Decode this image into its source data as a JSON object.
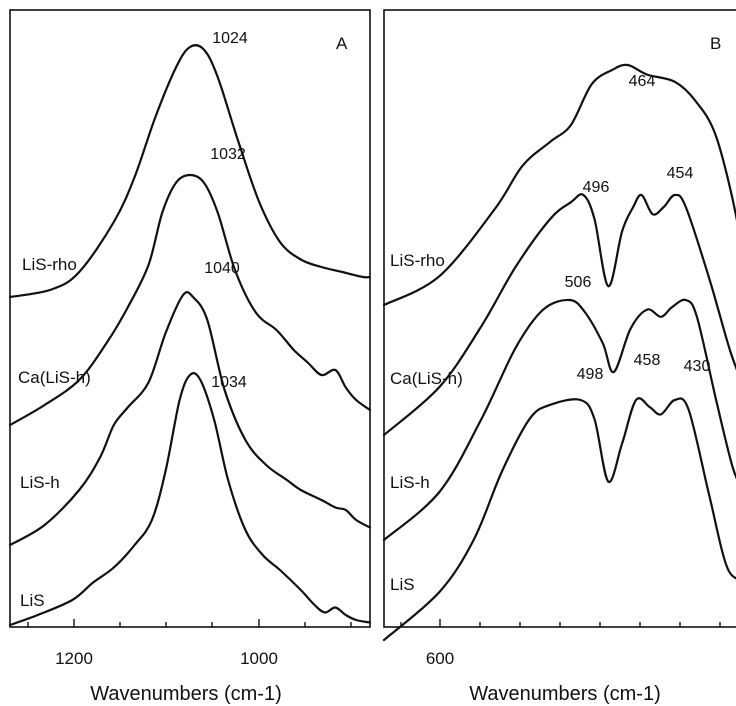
{
  "chart_data": [
    {
      "type": "line",
      "panel_label": "A",
      "xlabel": "Wavenumbers (cm-1)",
      "ylabel": "",
      "xlim": [
        1300,
        780
      ],
      "x_reversed": true,
      "tick_labels": [
        "1200",
        "1000"
      ],
      "tick_values": [
        1200,
        1000
      ],
      "grid": false,
      "legend": "none",
      "series": [
        {
          "name": "LiS-rho",
          "peak_label": "1024",
          "points": [
            [
              1300,
              0.0
            ],
            [
              1240,
              0.03
            ],
            [
              1200,
              0.1
            ],
            [
              1150,
              0.3
            ],
            [
              1120,
              0.48
            ],
            [
              1090,
              0.72
            ],
            [
              1060,
              0.92
            ],
            [
              1040,
              1.0
            ],
            [
              1020,
              0.99
            ],
            [
              1000,
              0.88
            ],
            [
              970,
              0.62
            ],
            [
              940,
              0.38
            ],
            [
              910,
              0.22
            ],
            [
              880,
              0.15
            ],
            [
              850,
              0.12
            ],
            [
              820,
              0.1
            ],
            [
              790,
              0.08
            ],
            [
              780,
              0.08
            ]
          ]
        },
        {
          "name": "Ca(LiS-h)",
          "peak_label": "1032",
          "points": [
            [
              1300,
              0.0
            ],
            [
              1250,
              0.08
            ],
            [
              1200,
              0.18
            ],
            [
              1160,
              0.33
            ],
            [
              1130,
              0.47
            ],
            [
              1100,
              0.64
            ],
            [
              1080,
              0.85
            ],
            [
              1060,
              0.97
            ],
            [
              1040,
              1.0
            ],
            [
              1020,
              0.97
            ],
            [
              1000,
              0.85
            ],
            [
              975,
              0.62
            ],
            [
              945,
              0.45
            ],
            [
              915,
              0.38
            ],
            [
              890,
              0.3
            ],
            [
              870,
              0.25
            ],
            [
              850,
              0.2
            ],
            [
              830,
              0.22
            ],
            [
              815,
              0.15
            ],
            [
              800,
              0.1
            ],
            [
              780,
              0.06
            ]
          ]
        },
        {
          "name": "LiS-h",
          "peak_label": "1040",
          "points": [
            [
              1300,
              0.0
            ],
            [
              1250,
              0.08
            ],
            [
              1200,
              0.22
            ],
            [
              1170,
              0.35
            ],
            [
              1150,
              0.48
            ],
            [
              1130,
              0.55
            ],
            [
              1100,
              0.65
            ],
            [
              1075,
              0.85
            ],
            [
              1050,
              1.0
            ],
            [
              1035,
              0.99
            ],
            [
              1015,
              0.9
            ],
            [
              990,
              0.62
            ],
            [
              960,
              0.42
            ],
            [
              930,
              0.32
            ],
            [
              900,
              0.26
            ],
            [
              880,
              0.22
            ],
            [
              850,
              0.18
            ],
            [
              830,
              0.15
            ],
            [
              815,
              0.14
            ],
            [
              800,
              0.1
            ],
            [
              780,
              0.07
            ]
          ]
        },
        {
          "name": "LiS",
          "peak_label": "1034",
          "points": [
            [
              1300,
              0.0
            ],
            [
              1260,
              0.04
            ],
            [
              1210,
              0.1
            ],
            [
              1180,
              0.17
            ],
            [
              1150,
              0.23
            ],
            [
              1120,
              0.32
            ],
            [
              1095,
              0.42
            ],
            [
              1075,
              0.62
            ],
            [
              1055,
              0.9
            ],
            [
              1040,
              1.0
            ],
            [
              1025,
              0.98
            ],
            [
              1005,
              0.82
            ],
            [
              985,
              0.58
            ],
            [
              960,
              0.38
            ],
            [
              935,
              0.28
            ],
            [
              910,
              0.22
            ],
            [
              880,
              0.14
            ],
            [
              860,
              0.08
            ],
            [
              845,
              0.05
            ],
            [
              830,
              0.07
            ],
            [
              815,
              0.04
            ],
            [
              800,
              0.02
            ],
            [
              780,
              0.01
            ]
          ]
        }
      ]
    },
    {
      "type": "line",
      "panel_label": "B",
      "xlabel": "Wavenumbers (cm-1)",
      "ylabel": "",
      "xlim": [
        640,
        380
      ],
      "x_reversed": true,
      "tick_labels": [
        "600"
      ],
      "tick_values": [
        600
      ],
      "grid": false,
      "legend": "none",
      "series": [
        {
          "name": "LiS-rho",
          "peak_label": "464",
          "points": [
            [
              640,
              0.0
            ],
            [
              600,
              0.12
            ],
            [
              560,
              0.4
            ],
            [
              540,
              0.58
            ],
            [
              520,
              0.68
            ],
            [
              505,
              0.75
            ],
            [
              490,
              0.92
            ],
            [
              475,
              0.98
            ],
            [
              464,
              1.0
            ],
            [
              450,
              0.96
            ],
            [
              430,
              0.93
            ],
            [
              415,
              0.85
            ],
            [
              400,
              0.7
            ],
            [
              385,
              0.35
            ],
            [
              380,
              0.1
            ]
          ]
        },
        {
          "name": "Ca(LiS-h)",
          "peak_label": "496 / 454",
          "points": [
            [
              640,
              0.0
            ],
            [
              600,
              0.2
            ],
            [
              570,
              0.45
            ],
            [
              545,
              0.7
            ],
            [
              520,
              0.9
            ],
            [
              505,
              0.97
            ],
            [
              496,
              1.0
            ],
            [
              488,
              0.9
            ],
            [
              478,
              0.62
            ],
            [
              468,
              0.85
            ],
            [
              460,
              0.95
            ],
            [
              454,
              1.0
            ],
            [
              446,
              0.92
            ],
            [
              438,
              0.95
            ],
            [
              430,
              1.0
            ],
            [
              422,
              0.95
            ],
            [
              405,
              0.65
            ],
            [
              390,
              0.35
            ],
            [
              380,
              0.2
            ]
          ]
        },
        {
          "name": "LiS-h",
          "peak_label": "506",
          "points": [
            [
              640,
              0.0
            ],
            [
              600,
              0.2
            ],
            [
              570,
              0.5
            ],
            [
              545,
              0.8
            ],
            [
              525,
              0.96
            ],
            [
              506,
              1.0
            ],
            [
              495,
              0.95
            ],
            [
              482,
              0.82
            ],
            [
              474,
              0.7
            ],
            [
              462,
              0.88
            ],
            [
              450,
              0.96
            ],
            [
              440,
              0.93
            ],
            [
              432,
              0.97
            ],
            [
              422,
              1.0
            ],
            [
              414,
              0.93
            ],
            [
              400,
              0.58
            ],
            [
              388,
              0.3
            ],
            [
              380,
              0.2
            ]
          ]
        },
        {
          "name": "LiS",
          "peak_label": "498 / 458 / 430",
          "points": [
            [
              640,
              0.0
            ],
            [
              600,
              0.2
            ],
            [
              575,
              0.42
            ],
            [
              555,
              0.7
            ],
            [
              535,
              0.92
            ],
            [
              520,
              0.98
            ],
            [
              498,
              1.0
            ],
            [
              488,
              0.92
            ],
            [
              478,
              0.66
            ],
            [
              468,
              0.82
            ],
            [
              458,
              1.0
            ],
            [
              448,
              0.97
            ],
            [
              440,
              0.94
            ],
            [
              430,
              1.0
            ],
            [
              420,
              0.96
            ],
            [
              405,
              0.6
            ],
            [
              392,
              0.3
            ],
            [
              380,
              0.25
            ]
          ]
        }
      ]
    }
  ],
  "labels": {
    "panelA": {
      "title": "A",
      "xlabel": "Wavenumbers (cm-1)",
      "ticks": [
        "1200",
        "1000"
      ],
      "series": [
        "LiS-rho",
        "Ca(LiS-h)",
        "LiS-h",
        "LiS"
      ],
      "peaks": [
        "1024",
        "1032",
        "1040",
        "1034"
      ]
    },
    "panelB": {
      "title": "B",
      "xlabel": "Wavenumbers (cm-1)",
      "ticks": [
        "600"
      ],
      "series": [
        "LiS-rho",
        "Ca(LiS-h)",
        "LiS-h",
        "LiS"
      ],
      "peaks": [
        "464",
        "496",
        "454",
        "506",
        "498",
        "458",
        "430"
      ]
    }
  }
}
